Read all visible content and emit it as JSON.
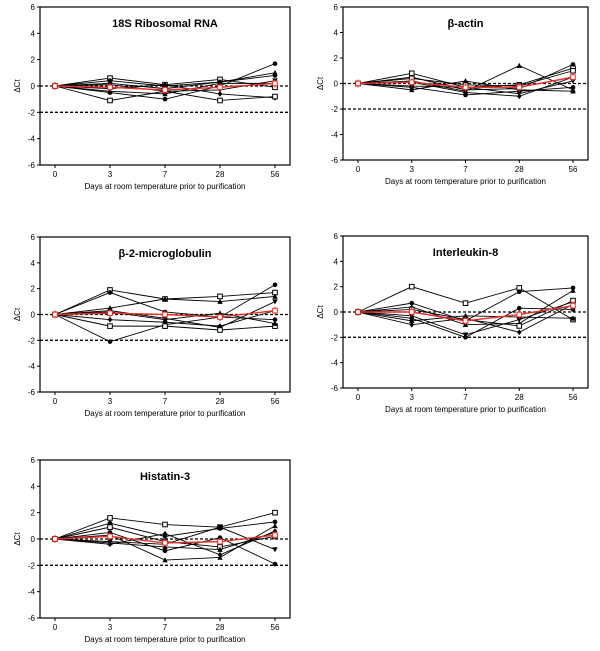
{
  "chart_data": [
    {
      "type": "line",
      "title": "18S Ribosomal RNA",
      "xlabel": "Days at room temperature prior to purification",
      "ylabel": "ΔCt",
      "categories": [
        "0",
        "3",
        "7",
        "28",
        "56"
      ],
      "ylim": [
        -6,
        6
      ],
      "yticks": [
        "6",
        "4",
        "2",
        "0",
        "-2",
        "-4",
        "-6"
      ],
      "reference_lines": [
        0,
        -2
      ],
      "colors": {
        "samples": "#000000",
        "mean": "#e8322b"
      },
      "series": [
        {
          "values": [
            0,
            0.6,
            0.1,
            0.5,
            -0.1
          ]
        },
        {
          "values": [
            0,
            0.4,
            0.0,
            0.3,
            0.8
          ]
        },
        {
          "values": [
            0,
            0.2,
            -0.2,
            0.3,
            1.0
          ]
        },
        {
          "values": [
            0,
            0.1,
            -0.4,
            -0.3,
            0.4
          ]
        },
        {
          "values": [
            0,
            -0.2,
            0.1,
            -0.6,
            -0.9
          ]
        },
        {
          "values": [
            0,
            -0.5,
            -1.0,
            0.0,
            1.7
          ]
        },
        {
          "values": [
            0,
            -1.1,
            -0.4,
            -1.1,
            -0.8
          ]
        },
        {
          "values": [
            0,
            -0.4,
            -0.6,
            0.2,
            0.2
          ]
        },
        {
          "mean": true,
          "values": [
            0,
            -0.1,
            -0.3,
            -0.1,
            0.2
          ]
        }
      ]
    },
    {
      "type": "line",
      "title": "β-actin",
      "xlabel": "Days at room temperature prior to purification",
      "ylabel": "ΔCt",
      "categories": [
        "0",
        "3",
        "7",
        "28",
        "56"
      ],
      "ylim": [
        -6,
        6
      ],
      "yticks": [
        "6",
        "4",
        "2",
        "0",
        "-2",
        "-4",
        "-6"
      ],
      "reference_lines": [
        0,
        -2
      ],
      "colors": {
        "samples": "#000000",
        "mean": "#e8322b"
      },
      "series": [
        {
          "values": [
            0,
            0.8,
            -0.3,
            -0.1,
            1.2
          ]
        },
        {
          "values": [
            0,
            0.5,
            -0.5,
            -0.4,
            1.5
          ]
        },
        {
          "values": [
            0,
            0.2,
            -0.6,
            1.4,
            -0.5
          ]
        },
        {
          "values": [
            0,
            -0.2,
            -0.3,
            -0.8,
            0.2
          ]
        },
        {
          "values": [
            0,
            0.1,
            -0.7,
            -1.0,
            0.5
          ]
        },
        {
          "values": [
            0,
            -0.3,
            -0.9,
            -0.6,
            -0.3
          ]
        },
        {
          "values": [
            0,
            0.4,
            -0.1,
            -0.2,
            1.0
          ]
        },
        {
          "values": [
            0,
            -0.5,
            0.2,
            -0.5,
            -0.6
          ]
        },
        {
          "mean": true,
          "values": [
            0,
            0.1,
            -0.3,
            -0.3,
            0.5
          ]
        }
      ]
    },
    {
      "type": "line",
      "title": "β-2-microglobulin",
      "xlabel": "Days at room temperature prior to purification",
      "ylabel": "ΔCt",
      "categories": [
        "0",
        "3",
        "7",
        "28",
        "56"
      ],
      "ylim": [
        -6,
        6
      ],
      "yticks": [
        "6",
        "4",
        "2",
        "0",
        "-2",
        "-4",
        "-6"
      ],
      "reference_lines": [
        0,
        -2
      ],
      "colors": {
        "samples": "#000000",
        "mean": "#e8322b"
      },
      "series": [
        {
          "values": [
            0,
            1.9,
            1.2,
            1.4,
            1.7
          ]
        },
        {
          "values": [
            0,
            1.7,
            0.2,
            -0.2,
            2.3
          ]
        },
        {
          "values": [
            0,
            0.5,
            1.2,
            1.0,
            1.4
          ]
        },
        {
          "values": [
            0,
            0.3,
            -0.3,
            -1.0,
            1.0
          ]
        },
        {
          "values": [
            0,
            -0.4,
            -0.6,
            -0.9,
            0.3
          ]
        },
        {
          "values": [
            0,
            -2.1,
            -0.8,
            -0.2,
            -0.4
          ]
        },
        {
          "values": [
            0,
            -0.9,
            -0.9,
            -1.2,
            -0.9
          ]
        },
        {
          "values": [
            0,
            0.2,
            -0.4,
            0.1,
            -0.7
          ]
        },
        {
          "mean": true,
          "values": [
            0,
            0.1,
            0.0,
            -0.2,
            0.3
          ]
        }
      ]
    },
    {
      "type": "line",
      "title": "Interleukin-8",
      "xlabel": "Days at room temperature prior to purification",
      "ylabel": "ΔCt",
      "categories": [
        "0",
        "3",
        "7",
        "28",
        "56"
      ],
      "ylim": [
        -6,
        6
      ],
      "yticks": [
        "6",
        "4",
        "2",
        "0",
        "-2",
        "-4",
        "-6"
      ],
      "reference_lines": [
        0,
        -2
      ],
      "colors": {
        "samples": "#000000",
        "mean": "#e8322b"
      },
      "series": [
        {
          "values": [
            0,
            2.0,
            0.7,
            1.9,
            -0.6
          ]
        },
        {
          "values": [
            0,
            0.7,
            -0.7,
            1.6,
            1.9
          ]
        },
        {
          "values": [
            0,
            0.4,
            -1.0,
            -0.9,
            1.7
          ]
        },
        {
          "values": [
            0,
            -0.3,
            -1.8,
            -0.6,
            0.8
          ]
        },
        {
          "values": [
            0,
            -1.0,
            -0.5,
            -1.6,
            0.6
          ]
        },
        {
          "values": [
            0,
            -0.5,
            -2.0,
            0.3,
            0.2
          ]
        },
        {
          "values": [
            0,
            0.2,
            -0.6,
            -1.1,
            0.9
          ]
        },
        {
          "values": [
            0,
            -0.7,
            -0.3,
            -0.4,
            -0.5
          ]
        },
        {
          "mean": true,
          "values": [
            0,
            0.0,
            -0.7,
            -0.2,
            0.5
          ]
        }
      ]
    },
    {
      "type": "line",
      "title": "Histatin-3",
      "xlabel": "Days at room temperature prior to purification",
      "ylabel": "ΔCt",
      "categories": [
        "0",
        "3",
        "7",
        "28",
        "56"
      ],
      "ylim": [
        -6,
        6
      ],
      "yticks": [
        "6",
        "4",
        "2",
        "0",
        "-2",
        "-4",
        "-6"
      ],
      "reference_lines": [
        0,
        -2
      ],
      "colors": {
        "samples": "#000000",
        "mean": "#e8322b"
      },
      "series": [
        {
          "values": [
            0,
            1.6,
            1.1,
            0.9,
            2.0
          ]
        },
        {
          "values": [
            0,
            1.2,
            0.2,
            0.8,
            1.3
          ]
        },
        {
          "values": [
            0,
            0.3,
            -1.6,
            -1.4,
            1.0
          ]
        },
        {
          "values": [
            0,
            -0.2,
            -0.4,
            0.9,
            -0.8
          ]
        },
        {
          "values": [
            0,
            -0.4,
            0.4,
            -1.2,
            0.6
          ]
        },
        {
          "values": [
            0,
            0.5,
            -0.9,
            0.1,
            -1.9
          ]
        },
        {
          "values": [
            0,
            0.9,
            -0.2,
            -0.6,
            0.2
          ]
        },
        {
          "values": [
            0,
            -0.3,
            -0.6,
            -0.8,
            0.5
          ]
        },
        {
          "mean": true,
          "values": [
            0,
            0.2,
            -0.3,
            -0.2,
            0.3
          ]
        }
      ]
    }
  ]
}
